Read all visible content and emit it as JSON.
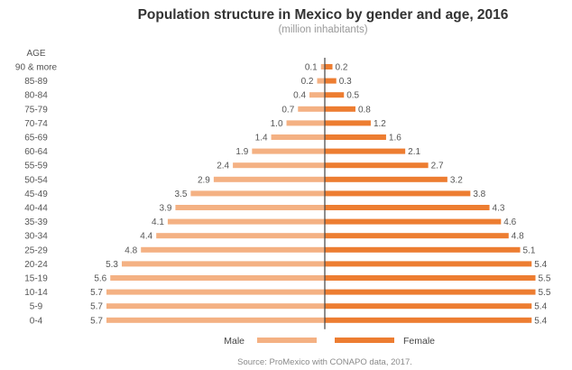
{
  "chart_data": {
    "type": "bar",
    "orientation": "horizontal",
    "layout": "population-pyramid",
    "title": "Population structure in Mexico by gender and age, 2016",
    "subtitle": "(million inhabitants)",
    "ylabel": "AGE",
    "categories": [
      "90 & more",
      "85-89",
      "80-84",
      "75-79",
      "70-74",
      "65-69",
      "60-64",
      "55-59",
      "50-54",
      "45-49",
      "40-44",
      "35-39",
      "30-34",
      "25-29",
      "20-24",
      "15-19",
      "10-14",
      "5-9",
      "0-4"
    ],
    "value_labels": {
      "male": [
        "0.1",
        "0.2",
        "0.4",
        "0.7",
        "1.0",
        "1.4",
        "1.9",
        "2.4",
        "2.9",
        "3.5",
        "3.9",
        "4.1",
        "4.4",
        "4.8",
        "5.3",
        "5.6",
        "5.7",
        "5.7",
        "5.7"
      ],
      "female": [
        "0.2",
        "0.3",
        "0.5",
        "0.8",
        "1.2",
        "1.6",
        "2.1",
        "2.7",
        "3.2",
        "3.8",
        "4.3",
        "4.6",
        "4.8",
        "5.1",
        "5.4",
        "5.5",
        "5.5",
        "5.4",
        "5.4"
      ]
    },
    "series": [
      {
        "name": "Male",
        "color": "#f4b183",
        "side": "left",
        "values": [
          0.1,
          0.2,
          0.4,
          0.7,
          1.0,
          1.4,
          1.9,
          2.4,
          2.9,
          3.5,
          3.9,
          4.1,
          4.4,
          4.8,
          5.3,
          5.6,
          5.7,
          5.7,
          5.7
        ]
      },
      {
        "name": "Female",
        "color": "#ed7d31",
        "side": "right",
        "values": [
          0.2,
          0.3,
          0.5,
          0.8,
          1.2,
          1.6,
          2.1,
          2.7,
          3.2,
          3.8,
          4.3,
          4.6,
          4.8,
          5.1,
          5.4,
          5.5,
          5.5,
          5.4,
          5.4
        ]
      }
    ],
    "xlim": [
      0,
      5.7
    ],
    "legend_position": "bottom",
    "grid": false,
    "source": "Source: ProMexico with CONAPO data, 2017."
  }
}
